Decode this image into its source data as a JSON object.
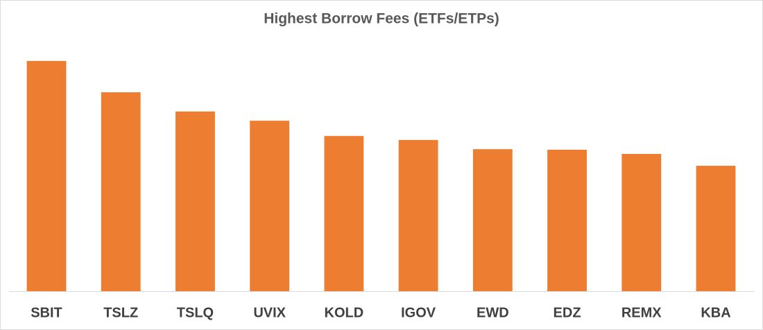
{
  "chart_data": {
    "type": "bar",
    "title": "Highest Borrow Fees (ETFs/ETPs)",
    "categories": [
      "SBIT",
      "TSLZ",
      "TSLQ",
      "UVIX",
      "KOLD",
      "IGOV",
      "EWD",
      "EDZ",
      "REMX",
      "KBA"
    ],
    "values": [
      87.4,
      75.5,
      68.2,
      64.7,
      58.9,
      57.4,
      53.9,
      53.7,
      52.1,
      47.6
    ],
    "color": "#ed7d31",
    "ylim": [
      0,
      100
    ]
  }
}
